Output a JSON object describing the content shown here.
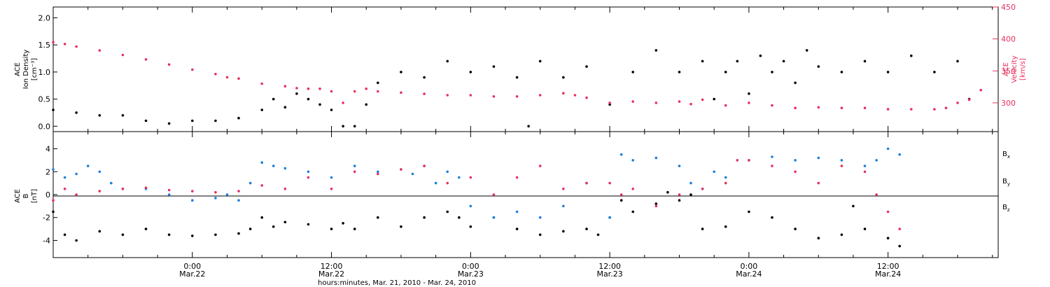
{
  "colors": {
    "black": "#000000",
    "red": "#e8305e",
    "blue": "#1a7fe0"
  },
  "chart_data": [
    {
      "type": "scatter",
      "panel": "top",
      "ylabel_left": [
        "ACE",
        "Ion Density",
        "[cm⁻³]"
      ],
      "ylabel_right": [
        "ACE",
        "Velocity",
        "[km/s]"
      ],
      "ylim_left": [
        -0.1,
        2.2
      ],
      "ylim_right": [
        255,
        450
      ],
      "yticks_left": [
        "0.0",
        "0.5",
        "1.0",
        "1.5",
        "2.0"
      ],
      "yticks_right": [
        "300",
        "350",
        "400",
        "450"
      ],
      "x_range_hours": [
        0,
        81.5
      ],
      "series": [
        {
          "axis": "left",
          "color": "black",
          "points": [
            [
              0,
              0.3
            ],
            [
              2,
              0.25
            ],
            [
              4,
              0.2
            ],
            [
              6,
              0.2
            ],
            [
              8,
              0.1
            ],
            [
              10,
              0.05
            ],
            [
              12,
              0.1
            ],
            [
              14,
              0.1
            ],
            [
              16,
              0.15
            ],
            [
              18,
              0.3
            ],
            [
              19,
              0.5
            ],
            [
              20,
              0.35
            ],
            [
              21,
              0.6
            ],
            [
              22,
              0.5
            ],
            [
              23,
              0.4
            ],
            [
              24,
              0.3
            ],
            [
              25,
              0.0
            ],
            [
              26,
              0.0
            ],
            [
              27,
              0.4
            ],
            [
              28,
              0.8
            ],
            [
              30,
              1.0
            ],
            [
              32,
              0.9
            ],
            [
              34,
              1.2
            ],
            [
              36,
              1.0
            ],
            [
              38,
              1.1
            ],
            [
              40,
              0.9
            ],
            [
              41,
              0.0
            ],
            [
              42,
              1.2
            ],
            [
              44,
              0.9
            ],
            [
              46,
              1.1
            ],
            [
              48,
              0.4
            ],
            [
              50,
              1.0
            ],
            [
              52,
              1.4
            ],
            [
              54,
              1.0
            ],
            [
              56,
              1.2
            ],
            [
              57,
              0.5
            ],
            [
              58,
              1.0
            ],
            [
              59,
              1.2
            ],
            [
              60,
              0.6
            ],
            [
              61,
              1.3
            ],
            [
              62,
              1.0
            ],
            [
              63,
              1.2
            ],
            [
              64,
              0.8
            ],
            [
              65,
              1.4
            ],
            [
              66,
              1.1
            ],
            [
              68,
              1.0
            ],
            [
              70,
              1.2
            ],
            [
              72,
              1.0
            ],
            [
              74,
              1.3
            ],
            [
              76,
              1.0
            ],
            [
              78,
              1.2
            ],
            [
              79,
              0.5
            ]
          ]
        },
        {
          "axis": "right",
          "color": "red",
          "points": [
            [
              0,
              395
            ],
            [
              1,
              392
            ],
            [
              2,
              388
            ],
            [
              4,
              382
            ],
            [
              6,
              375
            ],
            [
              8,
              368
            ],
            [
              10,
              360
            ],
            [
              12,
              352
            ],
            [
              14,
              345
            ],
            [
              15,
              340
            ],
            [
              16,
              338
            ],
            [
              18,
              330
            ],
            [
              20,
              326
            ],
            [
              21,
              323
            ],
            [
              22,
              322
            ],
            [
              23,
              322
            ],
            [
              24,
              318
            ],
            [
              25,
              300
            ],
            [
              26,
              318
            ],
            [
              27,
              322
            ],
            [
              28,
              318
            ],
            [
              30,
              316
            ],
            [
              32,
              314
            ],
            [
              34,
              312
            ],
            [
              36,
              312
            ],
            [
              38,
              310
            ],
            [
              40,
              310
            ],
            [
              42,
              312
            ],
            [
              44,
              315
            ],
            [
              45,
              312
            ],
            [
              46,
              308
            ],
            [
              48,
              300
            ],
            [
              50,
              302
            ],
            [
              52,
              300
            ],
            [
              54,
              302
            ],
            [
              55,
              298
            ],
            [
              56,
              305
            ],
            [
              58,
              296
            ],
            [
              60,
              300
            ],
            [
              62,
              296
            ],
            [
              64,
              292
            ],
            [
              66,
              293
            ],
            [
              68,
              292
            ],
            [
              70,
              292
            ],
            [
              72,
              290
            ],
            [
              74,
              290
            ],
            [
              76,
              290
            ],
            [
              77,
              292
            ],
            [
              78,
              300
            ],
            [
              79,
              305
            ],
            [
              80,
              320
            ]
          ]
        }
      ]
    },
    {
      "type": "scatter",
      "panel": "bottom",
      "ylabel": [
        "ACE",
        "B",
        "[nT]"
      ],
      "ylim": [
        -5.5,
        5.5
      ],
      "yticks": [
        "-4",
        "-2",
        "0",
        "2",
        "4"
      ],
      "x_range_hours": [
        0,
        81.5
      ],
      "x_ticks": [
        {
          "hour": 12,
          "labels": [
            "0:00",
            "Mar.22"
          ]
        },
        {
          "hour": 24,
          "labels": [
            "12:00",
            "Mar.22"
          ]
        },
        {
          "hour": 36,
          "labels": [
            "0:00",
            "Mar.23"
          ]
        },
        {
          "hour": 48,
          "labels": [
            "12:00",
            "Mar.23"
          ]
        },
        {
          "hour": 60,
          "labels": [
            "0:00",
            "Mar.24"
          ]
        },
        {
          "hour": 72,
          "labels": [
            "12:00",
            "Mar.24"
          ]
        }
      ],
      "xlabel": "hours:minutes, Mar. 21, 2010 - Mar. 24, 2010",
      "legend": [
        {
          "name": "B",
          "sub": "x",
          "color": "black"
        },
        {
          "name": "B",
          "sub": "y",
          "color": "blue"
        },
        {
          "name": "B",
          "sub": "z",
          "color": "red"
        }
      ],
      "series": [
        {
          "name": "Bx",
          "color": "black",
          "points": [
            [
              0,
              -1.5
            ],
            [
              1,
              -3.5
            ],
            [
              2,
              -4.0
            ],
            [
              4,
              -3.2
            ],
            [
              6,
              -3.5
            ],
            [
              8,
              -3.0
            ],
            [
              10,
              -3.5
            ],
            [
              12,
              -3.6
            ],
            [
              14,
              -3.5
            ],
            [
              16,
              -3.4
            ],
            [
              17,
              -3.0
            ],
            [
              18,
              -2.0
            ],
            [
              19,
              -2.8
            ],
            [
              20,
              -2.4
            ],
            [
              22,
              -2.6
            ],
            [
              24,
              -3.0
            ],
            [
              25,
              -2.5
            ],
            [
              26,
              -3.0
            ],
            [
              28,
              -2.0
            ],
            [
              30,
              -2.8
            ],
            [
              32,
              -2.0
            ],
            [
              34,
              -1.5
            ],
            [
              35,
              -2.0
            ],
            [
              36,
              -2.8
            ],
            [
              38,
              -2.0
            ],
            [
              40,
              -3.0
            ],
            [
              42,
              -3.5
            ],
            [
              44,
              -3.2
            ],
            [
              46,
              -3.0
            ],
            [
              47,
              -3.5
            ],
            [
              48,
              -2.0
            ],
            [
              49,
              -0.5
            ],
            [
              50,
              -1.5
            ],
            [
              52,
              -0.8
            ],
            [
              53,
              0.2
            ],
            [
              54,
              -0.5
            ],
            [
              55,
              0.0
            ],
            [
              56,
              -3.0
            ],
            [
              58,
              -2.8
            ],
            [
              60,
              -1.5
            ],
            [
              62,
              -2.0
            ],
            [
              64,
              -3.0
            ],
            [
              66,
              -3.8
            ],
            [
              68,
              -3.5
            ],
            [
              69,
              -1.0
            ],
            [
              70,
              -3.0
            ],
            [
              72,
              -3.8
            ],
            [
              73,
              -4.5
            ]
          ]
        },
        {
          "name": "By",
          "color": "blue",
          "points": [
            [
              0,
              2.2
            ],
            [
              1,
              1.5
            ],
            [
              2,
              1.8
            ],
            [
              3,
              2.5
            ],
            [
              4,
              2.0
            ],
            [
              5,
              1.0
            ],
            [
              6,
              0.5
            ],
            [
              8,
              0.5
            ],
            [
              10,
              0.0
            ],
            [
              12,
              -0.5
            ],
            [
              14,
              -0.3
            ],
            [
              15,
              0.0
            ],
            [
              16,
              -0.5
            ],
            [
              17,
              1.0
            ],
            [
              18,
              2.8
            ],
            [
              19,
              2.5
            ],
            [
              20,
              2.3
            ],
            [
              22,
              2.0
            ],
            [
              24,
              1.5
            ],
            [
              26,
              2.5
            ],
            [
              28,
              2.0
            ],
            [
              30,
              2.2
            ],
            [
              31,
              1.8
            ],
            [
              32,
              2.5
            ],
            [
              33,
              1.0
            ],
            [
              34,
              2.0
            ],
            [
              35,
              1.5
            ],
            [
              36,
              -1.0
            ],
            [
              38,
              -2.0
            ],
            [
              40,
              -1.5
            ],
            [
              42,
              -2.0
            ],
            [
              44,
              -1.0
            ],
            [
              46,
              1.0
            ],
            [
              48,
              -2.0
            ],
            [
              49,
              3.5
            ],
            [
              50,
              3.0
            ],
            [
              52,
              3.2
            ],
            [
              54,
              2.5
            ],
            [
              55,
              1.0
            ],
            [
              56,
              0.5
            ],
            [
              57,
              2.0
            ],
            [
              58,
              1.5
            ],
            [
              60,
              3.0
            ],
            [
              62,
              3.3
            ],
            [
              64,
              3.0
            ],
            [
              66,
              3.2
            ],
            [
              68,
              3.0
            ],
            [
              70,
              2.5
            ],
            [
              71,
              3.0
            ],
            [
              72,
              4.0
            ],
            [
              73,
              3.5
            ]
          ]
        },
        {
          "name": "Bz",
          "color": "red",
          "points": [
            [
              0,
              -0.5
            ],
            [
              1,
              0.5
            ],
            [
              2,
              0.0
            ],
            [
              4,
              0.3
            ],
            [
              6,
              0.5
            ],
            [
              8,
              0.6
            ],
            [
              10,
              0.4
            ],
            [
              12,
              0.3
            ],
            [
              14,
              0.2
            ],
            [
              16,
              0.3
            ],
            [
              18,
              0.8
            ],
            [
              20,
              0.5
            ],
            [
              22,
              1.5
            ],
            [
              24,
              0.5
            ],
            [
              26,
              2.0
            ],
            [
              28,
              1.8
            ],
            [
              30,
              2.2
            ],
            [
              32,
              2.5
            ],
            [
              34,
              1.0
            ],
            [
              36,
              1.5
            ],
            [
              38,
              0.0
            ],
            [
              40,
              1.5
            ],
            [
              42,
              2.5
            ],
            [
              44,
              0.5
            ],
            [
              46,
              1.0
            ],
            [
              48,
              1.0
            ],
            [
              49,
              0.0
            ],
            [
              50,
              0.5
            ],
            [
              52,
              -1.0
            ],
            [
              54,
              0.0
            ],
            [
              56,
              0.5
            ],
            [
              58,
              1.0
            ],
            [
              59,
              3.0
            ],
            [
              60,
              3.0
            ],
            [
              62,
              2.5
            ],
            [
              64,
              2.0
            ],
            [
              66,
              1.0
            ],
            [
              68,
              2.5
            ],
            [
              70,
              2.0
            ],
            [
              71,
              0.0
            ],
            [
              72,
              -1.5
            ],
            [
              73,
              -3.0
            ]
          ]
        }
      ]
    }
  ]
}
